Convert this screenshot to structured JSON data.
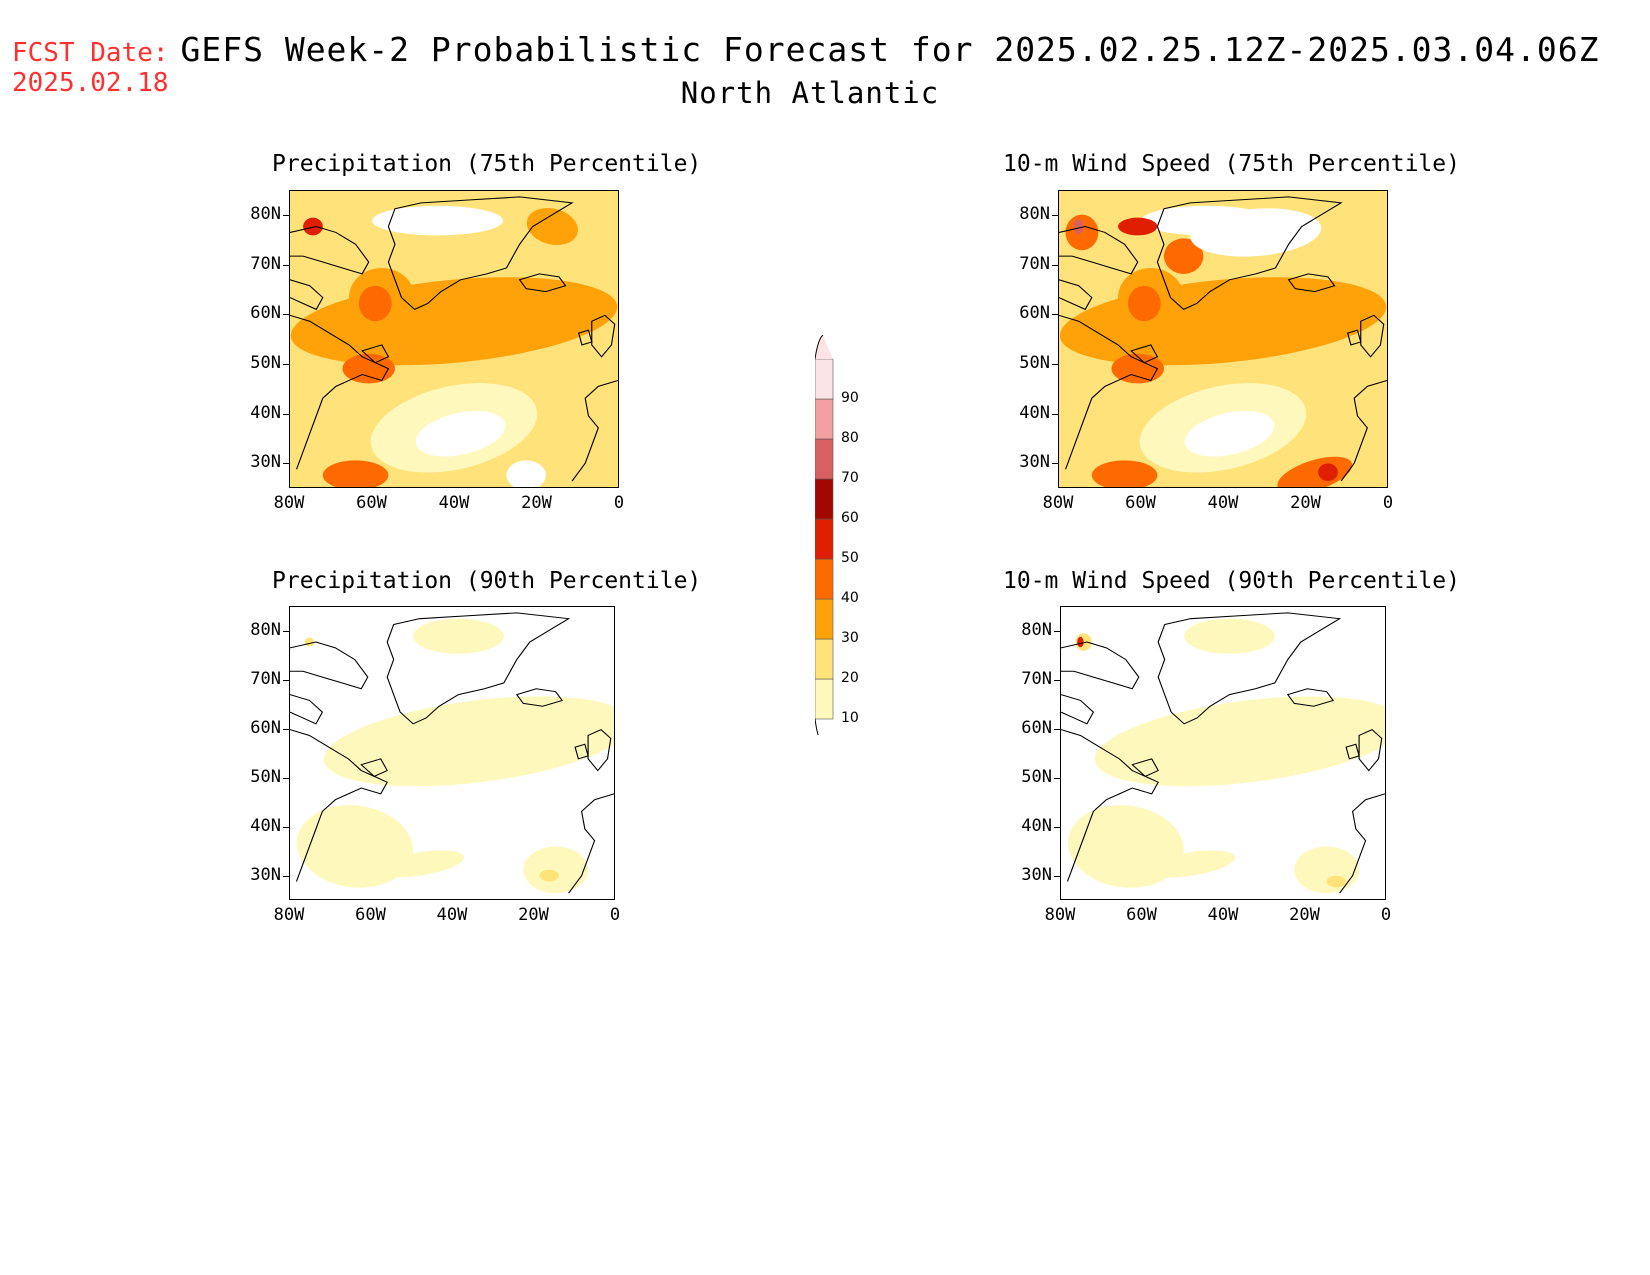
{
  "header": {
    "fcst_label": "FCST Date:",
    "fcst_date": "2025.02.18",
    "title": "GEFS Week-2 Probabilistic Forecast for 2025.02.25.12Z-2025.03.04.06Z",
    "subtitle": "North Atlantic"
  },
  "axes": {
    "lat_labels": [
      "80N",
      "70N",
      "60N",
      "50N",
      "40N",
      "30N"
    ],
    "lon_labels": [
      "80W",
      "60W",
      "40W",
      "20W",
      "0"
    ]
  },
  "panels": [
    {
      "title": "Precipitation (75th Percentile)",
      "level": "high",
      "variable": "precip"
    },
    {
      "title": "10-m Wind Speed (75th Percentile)",
      "level": "high",
      "variable": "wind"
    },
    {
      "title": "Precipitation (90th Percentile)",
      "level": "low",
      "variable": "precip"
    },
    {
      "title": "10-m Wind Speed (90th Percentile)",
      "level": "low",
      "variable": "wind"
    }
  ],
  "colorbar": {
    "labels": [
      "10",
      "20",
      "30",
      "40",
      "50",
      "60",
      "70",
      "80",
      "90"
    ],
    "colors": [
      "#fff8bd",
      "#ffe27a",
      "#ffa20a",
      "#ff6a00",
      "#e01f00",
      "#a30800",
      "#d96060",
      "#f5a0a0",
      "#fde4e4"
    ]
  }
}
